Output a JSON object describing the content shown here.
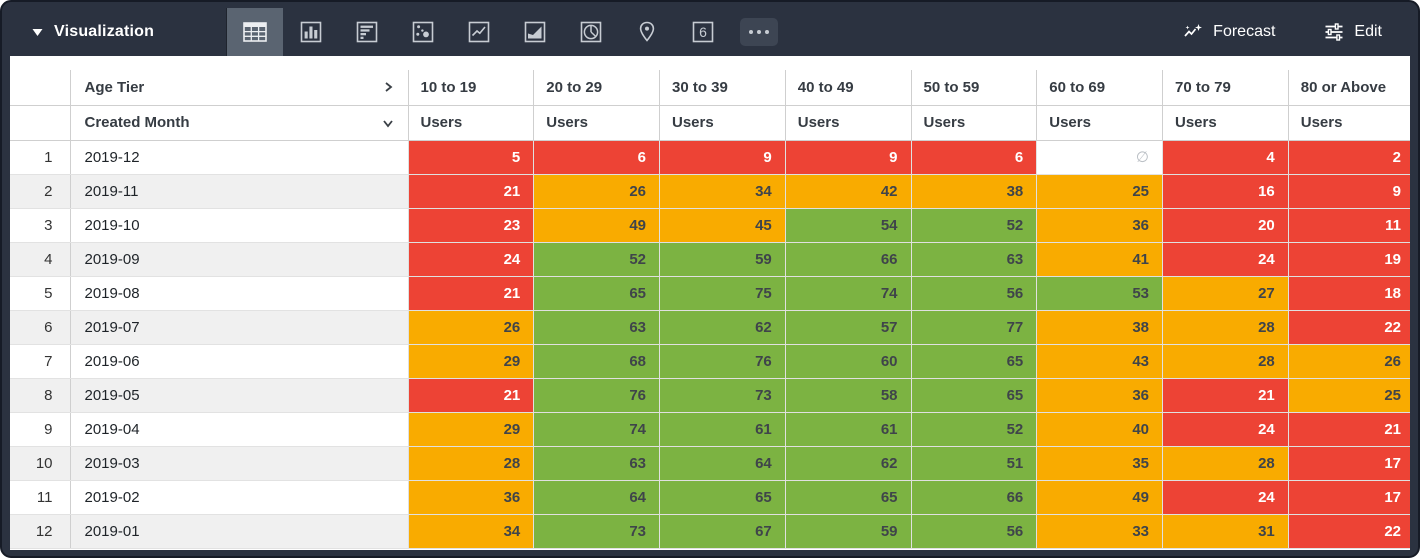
{
  "colors": {
    "toolbar_bg": "#2B3240",
    "selected_icon_bg": "#5A6471",
    "red": "#ED4335",
    "orange": "#F9AB00",
    "green": "#7CB342",
    "alt_row": "#F0F0F0"
  },
  "toolbar": {
    "title": "Visualization",
    "icons": [
      {
        "name": "table-icon",
        "selected": true
      },
      {
        "name": "bar-chart-icon",
        "selected": false
      },
      {
        "name": "horizontal-bar-chart-icon",
        "selected": false
      },
      {
        "name": "scatter-plot-icon",
        "selected": false
      },
      {
        "name": "line-chart-icon",
        "selected": false
      },
      {
        "name": "area-chart-icon",
        "selected": false
      },
      {
        "name": "pie-chart-icon",
        "selected": false
      },
      {
        "name": "map-pin-icon",
        "selected": false
      },
      {
        "name": "single-value-icon",
        "selected": false,
        "glyph": "6"
      },
      {
        "name": "more-icon",
        "selected": false
      }
    ],
    "forecast_label": "Forecast",
    "edit_label": "Edit"
  },
  "table": {
    "pivot_field": "Age Tier",
    "row_field": "Created Month",
    "measure_label": "Users",
    "null_symbol": "∅",
    "columns": [
      "10 to 19",
      "20 to 29",
      "30 to 39",
      "40 to 49",
      "50 to 59",
      "60 to 69",
      "70 to 79",
      "80 or Above"
    ],
    "rows": [
      {
        "index": 1,
        "month": "2019-12",
        "values": [
          5,
          6,
          9,
          9,
          6,
          null,
          4,
          2
        ],
        "colors": [
          "red",
          "red",
          "red",
          "red",
          "red",
          "null",
          "red",
          "red"
        ]
      },
      {
        "index": 2,
        "month": "2019-11",
        "values": [
          21,
          26,
          34,
          42,
          38,
          25,
          16,
          9
        ],
        "colors": [
          "red",
          "orange",
          "orange",
          "orange",
          "orange",
          "orange",
          "red",
          "red"
        ]
      },
      {
        "index": 3,
        "month": "2019-10",
        "values": [
          23,
          49,
          45,
          54,
          52,
          36,
          20,
          11
        ],
        "colors": [
          "red",
          "orange",
          "orange",
          "green",
          "green",
          "orange",
          "red",
          "red"
        ]
      },
      {
        "index": 4,
        "month": "2019-09",
        "values": [
          24,
          52,
          59,
          66,
          63,
          41,
          24,
          19
        ],
        "colors": [
          "red",
          "green",
          "green",
          "green",
          "green",
          "orange",
          "red",
          "red"
        ]
      },
      {
        "index": 5,
        "month": "2019-08",
        "values": [
          21,
          65,
          75,
          74,
          56,
          53,
          27,
          18
        ],
        "colors": [
          "red",
          "green",
          "green",
          "green",
          "green",
          "green",
          "orange",
          "red"
        ]
      },
      {
        "index": 6,
        "month": "2019-07",
        "values": [
          26,
          63,
          62,
          57,
          77,
          38,
          28,
          22
        ],
        "colors": [
          "orange",
          "green",
          "green",
          "green",
          "green",
          "orange",
          "orange",
          "red"
        ]
      },
      {
        "index": 7,
        "month": "2019-06",
        "values": [
          29,
          68,
          76,
          60,
          65,
          43,
          28,
          26
        ],
        "colors": [
          "orange",
          "green",
          "green",
          "green",
          "green",
          "orange",
          "orange",
          "orange"
        ]
      },
      {
        "index": 8,
        "month": "2019-05",
        "values": [
          21,
          76,
          73,
          58,
          65,
          36,
          21,
          25
        ],
        "colors": [
          "red",
          "green",
          "green",
          "green",
          "green",
          "orange",
          "red",
          "orange"
        ]
      },
      {
        "index": 9,
        "month": "2019-04",
        "values": [
          29,
          74,
          61,
          61,
          52,
          40,
          24,
          21
        ],
        "colors": [
          "orange",
          "green",
          "green",
          "green",
          "green",
          "orange",
          "red",
          "red"
        ]
      },
      {
        "index": 10,
        "month": "2019-03",
        "values": [
          28,
          63,
          64,
          62,
          51,
          35,
          28,
          17
        ],
        "colors": [
          "orange",
          "green",
          "green",
          "green",
          "green",
          "orange",
          "orange",
          "red"
        ]
      },
      {
        "index": 11,
        "month": "2019-02",
        "values": [
          36,
          64,
          65,
          65,
          66,
          49,
          24,
          17
        ],
        "colors": [
          "orange",
          "green",
          "green",
          "green",
          "green",
          "orange",
          "red",
          "red"
        ]
      },
      {
        "index": 12,
        "month": "2019-01",
        "values": [
          34,
          73,
          67,
          59,
          56,
          33,
          31,
          22
        ],
        "colors": [
          "orange",
          "green",
          "green",
          "green",
          "green",
          "orange",
          "orange",
          "red"
        ]
      }
    ]
  }
}
